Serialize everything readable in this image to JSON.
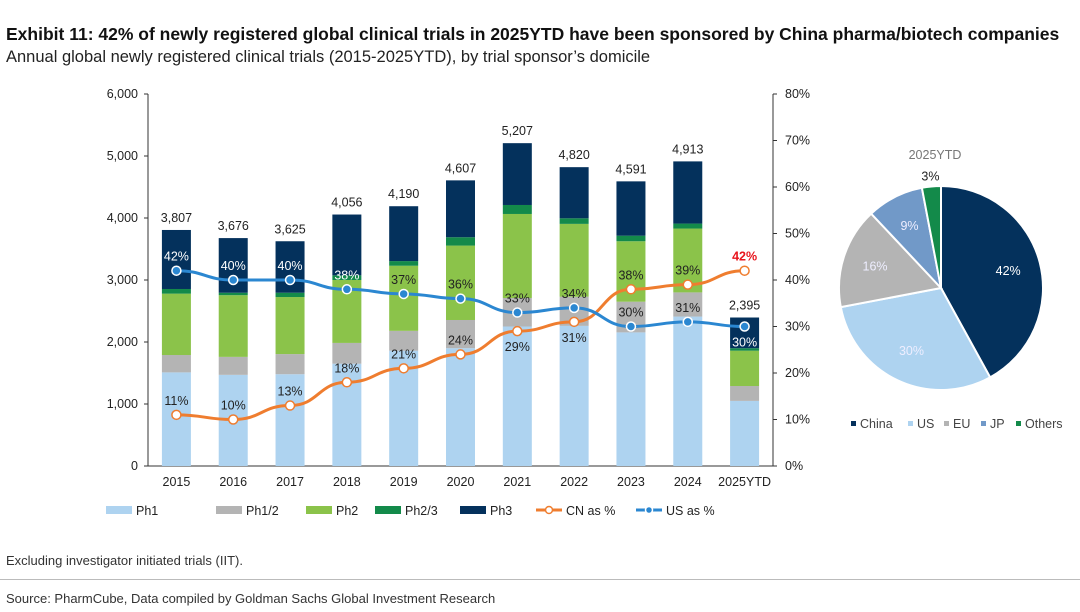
{
  "title": "Exhibit 11: 42% of newly registered global clinical trials in 2025YTD have been sponsored by China pharma/biotech companies",
  "subtitle": "Annual global newly registered clinical trials (2015-2025YTD), by trial sponsor’s domicile",
  "note": "Excluding investigator initiated trials (IIT).",
  "source": "Source: PharmCube, Data compiled by Goldman Sachs Global Investment Research",
  "chart_data": [
    {
      "type": "bar",
      "stacked": true,
      "categories": [
        "2015",
        "2016",
        "2017",
        "2018",
        "2019",
        "2020",
        "2021",
        "2022",
        "2023",
        "2024",
        "2025YTD"
      ],
      "series": [
        {
          "name": "Ph1",
          "color": "#aed3f0",
          "values": [
            1510,
            1470,
            1480,
            1650,
            1860,
            1900,
            2250,
            2260,
            2155,
            2410,
            1050
          ]
        },
        {
          "name": "Ph1/2",
          "color": "#b4b4b4",
          "values": [
            280,
            290,
            325,
            335,
            320,
            455,
            460,
            470,
            495,
            390,
            240
          ]
        },
        {
          "name": "Ph2",
          "color": "#8bc34a",
          "values": [
            990,
            995,
            920,
            1015,
            1050,
            1200,
            1355,
            1175,
            975,
            1030,
            570
          ]
        },
        {
          "name": "Ph2/3",
          "color": "#138a4a",
          "values": [
            75,
            40,
            70,
            75,
            75,
            135,
            145,
            90,
            90,
            80,
            40
          ]
        },
        {
          "name": "Ph3",
          "color": "#04315c",
          "values": [
            952,
            881,
            830,
            981,
            885,
            917,
            997,
            825,
            876,
            1003,
            495
          ]
        }
      ],
      "totals": [
        3807,
        3676,
        3625,
        4056,
        4190,
        4607,
        5207,
        4820,
        4591,
        4913,
        2395
      ],
      "total_labels": [
        "3,807",
        "3,676",
        "3,625",
        "4,056",
        "4,190",
        "4,607",
        "5,207",
        "4,820",
        "4,591",
        "4,913",
        "2,395"
      ],
      "lines": [
        {
          "name": "CN as %",
          "color": "#ef7d2f",
          "axis": "right",
          "values": [
            11,
            10,
            13,
            18,
            21,
            24,
            29,
            31,
            38,
            39,
            42
          ],
          "label_side": [
            "above",
            "above",
            "above",
            "above",
            "above",
            "above",
            "below",
            "below",
            "above",
            "above",
            "above"
          ]
        },
        {
          "name": "US as %",
          "color": "#2b87d1",
          "axis": "right",
          "values": [
            42,
            40,
            40,
            38,
            37,
            36,
            33,
            34,
            30,
            31,
            30
          ],
          "label_side": [
            "above",
            "above",
            "above",
            "above",
            "above",
            "above",
            "above",
            "above",
            "above",
            "above",
            "below"
          ]
        }
      ],
      "highlight_label_color": "#e8141c",
      "y_left": {
        "min": 0,
        "max": 6000,
        "ticks": [
          0,
          1000,
          2000,
          3000,
          4000,
          5000,
          6000
        ],
        "tick_labels": [
          "0",
          "1,000",
          "2,000",
          "3,000",
          "4,000",
          "5,000",
          "6,000"
        ]
      },
      "y_right": {
        "min": 0,
        "max": 80,
        "ticks": [
          0,
          10,
          20,
          30,
          40,
          50,
          60,
          70,
          80
        ],
        "tick_labels": [
          "0%",
          "10%",
          "20%",
          "30%",
          "40%",
          "50%",
          "60%",
          "70%",
          "80%"
        ]
      },
      "legend": {
        "placement": "bottom",
        "items": [
          "Ph1",
          "Ph1/2",
          "Ph2",
          "Ph2/3",
          "Ph3",
          "CN as %",
          "US as %"
        ]
      },
      "grid": false
    },
    {
      "type": "pie",
      "title": "2025YTD",
      "slices": [
        {
          "name": "China",
          "value": 42,
          "label": "42%",
          "color": "#04315c"
        },
        {
          "name": "US",
          "value": 30,
          "label": "30%",
          "color": "#aed3f0"
        },
        {
          "name": "EU",
          "value": 16,
          "label": "16%",
          "color": "#b4b4b4"
        },
        {
          "name": "JP",
          "value": 9,
          "label": "9%",
          "color": "#7199c8"
        },
        {
          "name": "Others",
          "value": 3,
          "label": "3%",
          "color": "#138a4a"
        }
      ],
      "legend": {
        "placement": "bottom",
        "items": [
          "China",
          "US",
          "EU",
          "JP",
          "Others"
        ]
      }
    }
  ]
}
